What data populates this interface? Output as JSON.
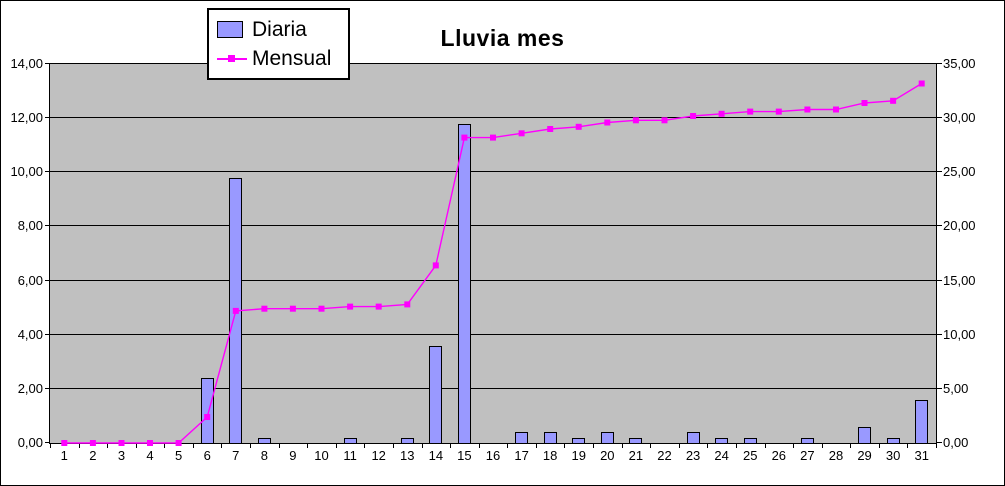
{
  "chart_data": {
    "type": "combo-bar-line",
    "title": "Lluvia mes",
    "categories": [
      "1",
      "2",
      "3",
      "4",
      "5",
      "6",
      "7",
      "8",
      "9",
      "10",
      "11",
      "12",
      "13",
      "14",
      "15",
      "16",
      "17",
      "18",
      "19",
      "20",
      "21",
      "22",
      "23",
      "24",
      "25",
      "26",
      "27",
      "28",
      "29",
      "30",
      "31"
    ],
    "series": [
      {
        "name": "Diaria",
        "type": "bar",
        "axis": "left",
        "color": "#9999ff",
        "values": [
          0,
          0,
          0,
          0,
          0,
          2.4,
          9.8,
          0.2,
          0,
          0,
          0.2,
          0,
          0.2,
          3.6,
          11.8,
          0,
          0.4,
          0.4,
          0.2,
          0.4,
          0.2,
          0,
          0.4,
          0.2,
          0.2,
          0,
          0.2,
          0,
          0.6,
          0.2,
          1.6
        ]
      },
      {
        "name": "Mensual",
        "type": "line",
        "axis": "right",
        "color": "#ff00ff",
        "values": [
          0,
          0,
          0,
          0,
          0,
          2.4,
          12.2,
          12.4,
          12.4,
          12.4,
          12.6,
          12.6,
          12.8,
          16.4,
          28.2,
          28.2,
          28.6,
          29.0,
          29.2,
          29.6,
          29.8,
          29.8,
          30.2,
          30.4,
          30.6,
          30.6,
          30.8,
          30.8,
          31.4,
          31.6,
          33.2
        ]
      }
    ],
    "left_axis": {
      "min": 0,
      "max": 14,
      "step": 2,
      "tick_labels": [
        "0,00",
        "2,00",
        "4,00",
        "6,00",
        "8,00",
        "10,00",
        "12,00",
        "14,00"
      ]
    },
    "right_axis": {
      "min": 0,
      "max": 35,
      "step": 5,
      "tick_labels": [
        "0,00",
        "5,00",
        "10,00",
        "15,00",
        "20,00",
        "25,00",
        "30,00",
        "35,00"
      ]
    },
    "plot_background": "#c0c0c0",
    "gridline_color": "#000000",
    "grid": true,
    "legend_position": "top-left"
  }
}
